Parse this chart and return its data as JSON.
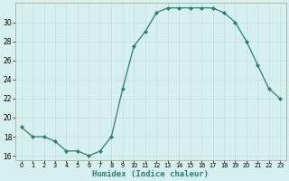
{
  "x": [
    0,
    1,
    2,
    3,
    4,
    5,
    6,
    7,
    8,
    9,
    10,
    11,
    12,
    13,
    14,
    15,
    16,
    17,
    18,
    19,
    20,
    21,
    22,
    23
  ],
  "y": [
    19,
    18,
    18,
    17.5,
    16.5,
    16.5,
    16,
    16.5,
    18,
    23,
    27.5,
    29,
    31,
    31.5,
    31.5,
    31.5,
    31.5,
    31.5,
    31,
    30,
    28,
    25.5,
    23,
    22
  ],
  "line_color": "#2e7d6e",
  "marker": "D",
  "marker_size": 2.0,
  "bg_color": "#d6f0f0",
  "grid_color": "#c8e0e0",
  "xlabel": "Humidex (Indice chaleur)",
  "ylim": [
    15.5,
    32
  ],
  "yticks": [
    16,
    18,
    20,
    22,
    24,
    26,
    28,
    30
  ],
  "xlim": [
    -0.5,
    23.5
  ],
  "xticks": [
    0,
    1,
    2,
    3,
    4,
    5,
    6,
    7,
    8,
    9,
    10,
    11,
    12,
    13,
    14,
    15,
    16,
    17,
    18,
    19,
    20,
    21,
    22,
    23
  ],
  "xtick_labels": [
    "0",
    "1",
    "2",
    "3",
    "4",
    "5",
    "6",
    "7",
    "8",
    "9",
    "10",
    "11",
    "12",
    "13",
    "14",
    "15",
    "16",
    "17",
    "18",
    "19",
    "20",
    "21",
    "22",
    "23"
  ]
}
